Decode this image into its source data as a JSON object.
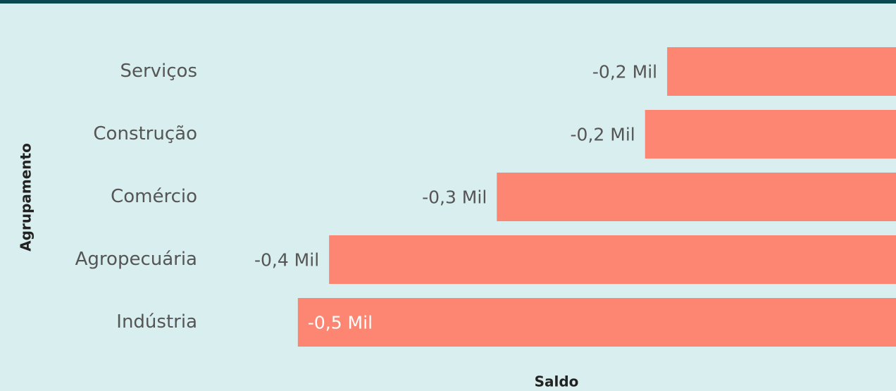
{
  "chart_data": {
    "type": "barh",
    "categories": [
      "Serviços",
      "Construção",
      "Comércio",
      "Agropecuária",
      "Indústria"
    ],
    "values": [
      -0.176,
      -0.193,
      -0.307,
      -0.436,
      -0.46
    ],
    "value_labels": [
      "-0,2 Mil",
      "-0,2 Mil",
      "-0,3 Mil",
      "-0,4 Mil",
      "-0,5 Mil"
    ],
    "color": "#fd8672",
    "xlim": [
      -0.5,
      0
    ],
    "x_label": "Saldo",
    "y_label": "Agrupamento"
  }
}
